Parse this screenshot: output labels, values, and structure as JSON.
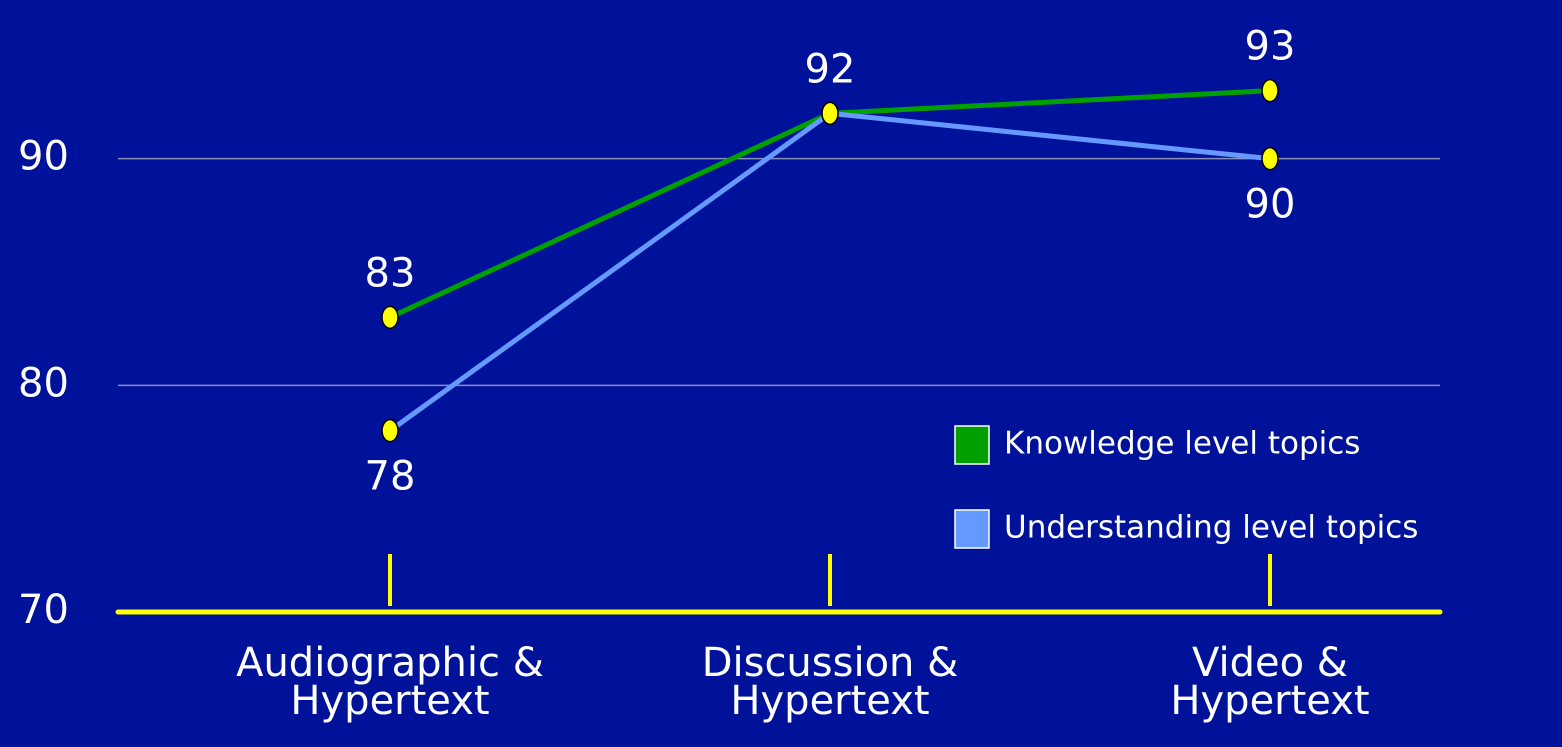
{
  "chart_data": {
    "type": "line",
    "categories": [
      "Audiographic &\nHypertext",
      "Discussion &\nHypertext",
      "Video &\nHypertext"
    ],
    "series": [
      {
        "name": "Knowledge level topics",
        "color": "#00a000",
        "values": [
          83,
          92,
          93
        ]
      },
      {
        "name": "Understanding level topics",
        "color": "#6699ff",
        "values": [
          78,
          92,
          90
        ]
      }
    ],
    "ylim": [
      70,
      97
    ],
    "yticks": [
      70,
      80,
      90
    ],
    "grid": true,
    "axis_color": "#ffff00",
    "marker_color": "#ffff00",
    "legend": "lower right"
  }
}
